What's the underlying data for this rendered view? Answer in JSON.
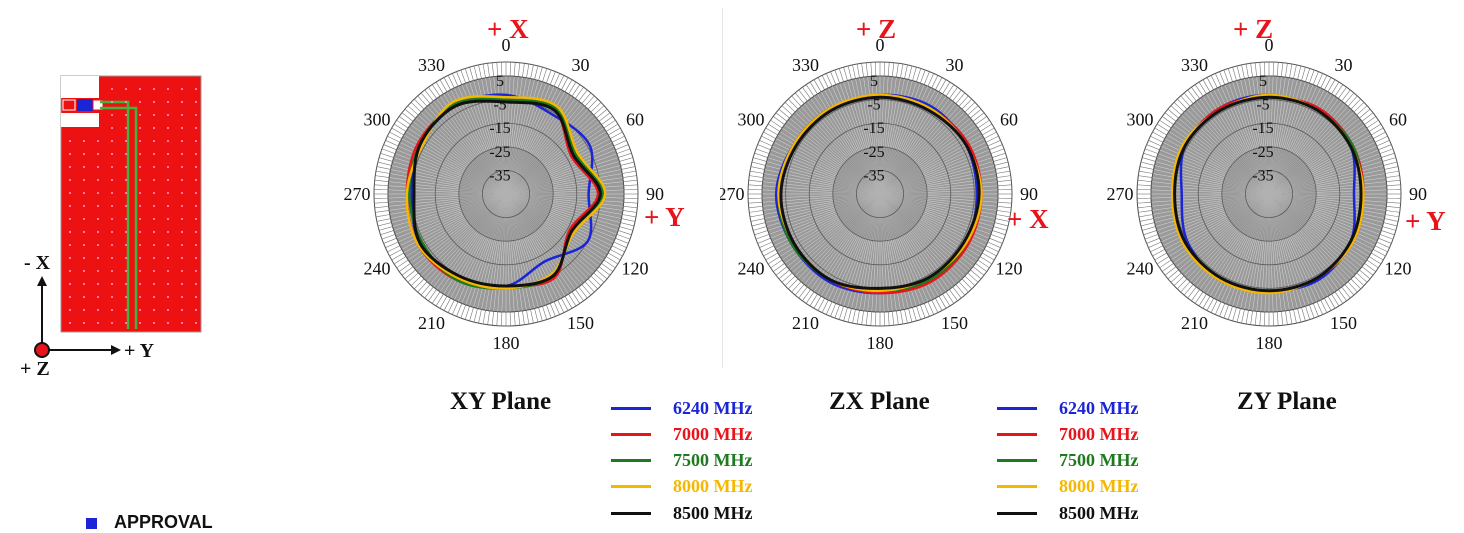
{
  "orientation": {
    "minus_x_label": "- X",
    "plus_y_label": "+ Y",
    "plus_z_label": "+ Z"
  },
  "legend": [
    {
      "label": "6240 MHz",
      "color": "#1b25d6"
    },
    {
      "label": "7000 MHz",
      "color": "#e8141c"
    },
    {
      "label": "7500 MHz",
      "color": "#1e7a1e"
    },
    {
      "label": "8000 MHz",
      "color": "#f5b800"
    },
    {
      "label": "8500 MHz",
      "color": "#111111"
    }
  ],
  "footer": {
    "text": "APPROVAL"
  },
  "chart_data": [
    {
      "type": "polar",
      "title": "XY Plane",
      "top_axis_label": "+ X",
      "right_axis_label": "+ Y",
      "angle_ticks": [
        0,
        30,
        60,
        90,
        120,
        150,
        180,
        210,
        240,
        270,
        300,
        330
      ],
      "radial_ticks": [
        5,
        -5,
        -15,
        -25,
        -35
      ],
      "rlim": [
        -45,
        5
      ],
      "series": [
        {
          "name": "6240 MHz",
          "color": "#1b25d6",
          "theta": [
            0,
            30,
            60,
            90,
            120,
            150,
            180,
            210,
            240,
            270,
            300,
            330
          ],
          "r": [
            -3,
            -6,
            -4,
            -10,
            -5,
            -12,
            -6,
            -5,
            -3,
            -5,
            -3,
            -2
          ]
        },
        {
          "name": "7000 MHz",
          "color": "#e8141c",
          "theta": [
            0,
            30,
            60,
            90,
            120,
            150,
            180,
            210,
            240,
            270,
            300,
            330
          ],
          "r": [
            -6,
            -4,
            -13,
            -6,
            -14,
            -4,
            -6,
            -3,
            -2,
            -3,
            -2,
            -2
          ]
        },
        {
          "name": "7500 MHz",
          "color": "#1e7a1e",
          "theta": [
            0,
            30,
            60,
            90,
            120,
            150,
            180,
            210,
            240,
            270,
            300,
            330
          ],
          "r": [
            -5,
            -3,
            -11,
            -4,
            -13,
            -5,
            -5,
            -3,
            -4,
            -4,
            -3,
            -1
          ]
        },
        {
          "name": "8000 MHz",
          "color": "#f5b800",
          "theta": [
            0,
            30,
            60,
            90,
            120,
            150,
            180,
            210,
            240,
            270,
            300,
            330
          ],
          "r": [
            -4,
            -2,
            -10,
            -3,
            -12,
            -6,
            -5,
            -4,
            -2,
            -3,
            -4,
            0
          ]
        },
        {
          "name": "8500 MHz",
          "color": "#111111",
          "theta": [
            0,
            30,
            60,
            90,
            120,
            150,
            180,
            210,
            240,
            270,
            300,
            330
          ],
          "r": [
            -6,
            -4,
            -12,
            -5,
            -13,
            -5,
            -6,
            -5,
            -3,
            -6,
            -3,
            -2
          ]
        }
      ]
    },
    {
      "type": "polar",
      "title": "ZX Plane",
      "top_axis_label": "+ Z",
      "right_axis_label": "+ X",
      "angle_ticks": [
        0,
        30,
        60,
        90,
        120,
        150,
        180,
        210,
        240,
        270,
        300,
        330
      ],
      "radial_ticks": [
        5,
        -5,
        -15,
        -25,
        -35
      ],
      "rlim": [
        -45,
        5
      ],
      "series": [
        {
          "name": "6240 MHz",
          "color": "#1b25d6",
          "theta": [
            0,
            30,
            60,
            90,
            120,
            150,
            180,
            210,
            240,
            270,
            300,
            330
          ],
          "r": [
            -3,
            -2,
            -3,
            -4,
            -3,
            -3,
            -3,
            -2,
            -2,
            -1,
            -3,
            -4
          ]
        },
        {
          "name": "7000 MHz",
          "color": "#e8141c",
          "theta": [
            0,
            30,
            60,
            90,
            120,
            150,
            180,
            210,
            240,
            270,
            300,
            330
          ],
          "r": [
            -4,
            -3,
            -2,
            -2,
            -2,
            -2,
            -3,
            -3,
            -3,
            -3,
            -3,
            -3
          ]
        },
        {
          "name": "7500 MHz",
          "color": "#1e7a1e",
          "theta": [
            0,
            30,
            60,
            90,
            120,
            150,
            180,
            210,
            240,
            270,
            300,
            330
          ],
          "r": [
            -4,
            -3,
            -3,
            -3,
            -3,
            -3,
            -4,
            -3,
            -2,
            -2,
            -3,
            -3
          ]
        },
        {
          "name": "8000 MHz",
          "color": "#f5b800",
          "theta": [
            0,
            30,
            60,
            90,
            120,
            150,
            180,
            210,
            240,
            270,
            300,
            330
          ],
          "r": [
            -3,
            -3,
            -3,
            -2,
            -3,
            -4,
            -4,
            -3,
            -3,
            -2,
            -3,
            -3
          ]
        },
        {
          "name": "8500 MHz",
          "color": "#111111",
          "theta": [
            0,
            30,
            60,
            90,
            120,
            150,
            180,
            210,
            240,
            270,
            300,
            330
          ],
          "r": [
            -4,
            -4,
            -3,
            -3,
            -4,
            -4,
            -5,
            -3,
            -3,
            -3,
            -4,
            -4
          ]
        }
      ]
    },
    {
      "type": "polar",
      "title": "ZY Plane",
      "top_axis_label": "+ Z",
      "right_axis_label": "+ Y",
      "angle_ticks": [
        0,
        30,
        60,
        90,
        120,
        150,
        180,
        210,
        240,
        270,
        300,
        330
      ],
      "radial_ticks": [
        5,
        -5,
        -15,
        -25,
        -35
      ],
      "rlim": [
        -45,
        5
      ],
      "series": [
        {
          "name": "6240 MHz",
          "color": "#1b25d6",
          "theta": [
            0,
            30,
            60,
            90,
            120,
            150,
            180,
            210,
            240,
            270,
            300,
            330
          ],
          "r": [
            -3,
            -4,
            -5,
            -9,
            -5,
            -3,
            -4,
            -3,
            -5,
            -8,
            -4,
            -3
          ]
        },
        {
          "name": "7000 MHz",
          "color": "#e8141c",
          "theta": [
            0,
            30,
            60,
            90,
            120,
            150,
            180,
            210,
            240,
            270,
            300,
            330
          ],
          "r": [
            -4,
            -3,
            -4,
            -5,
            -4,
            -4,
            -4,
            -3,
            -4,
            -5,
            -4,
            -3
          ]
        },
        {
          "name": "7500 MHz",
          "color": "#1e7a1e",
          "theta": [
            0,
            30,
            60,
            90,
            120,
            150,
            180,
            210,
            240,
            270,
            300,
            330
          ],
          "r": [
            -4,
            -4,
            -4,
            -6,
            -5,
            -4,
            -4,
            -4,
            -4,
            -5,
            -4,
            -4
          ]
        },
        {
          "name": "8000 MHz",
          "color": "#f5b800",
          "theta": [
            0,
            30,
            60,
            90,
            120,
            150,
            180,
            210,
            240,
            270,
            300,
            330
          ],
          "r": [
            -3,
            -4,
            -5,
            -5,
            -4,
            -4,
            -3,
            -3,
            -3,
            -4,
            -3,
            -4
          ]
        },
        {
          "name": "8500 MHz",
          "color": "#111111",
          "theta": [
            0,
            30,
            60,
            90,
            120,
            150,
            180,
            210,
            240,
            270,
            300,
            330
          ],
          "r": [
            -4,
            -4,
            -5,
            -6,
            -5,
            -4,
            -4,
            -4,
            -4,
            -5,
            -4,
            -4
          ]
        }
      ]
    }
  ]
}
